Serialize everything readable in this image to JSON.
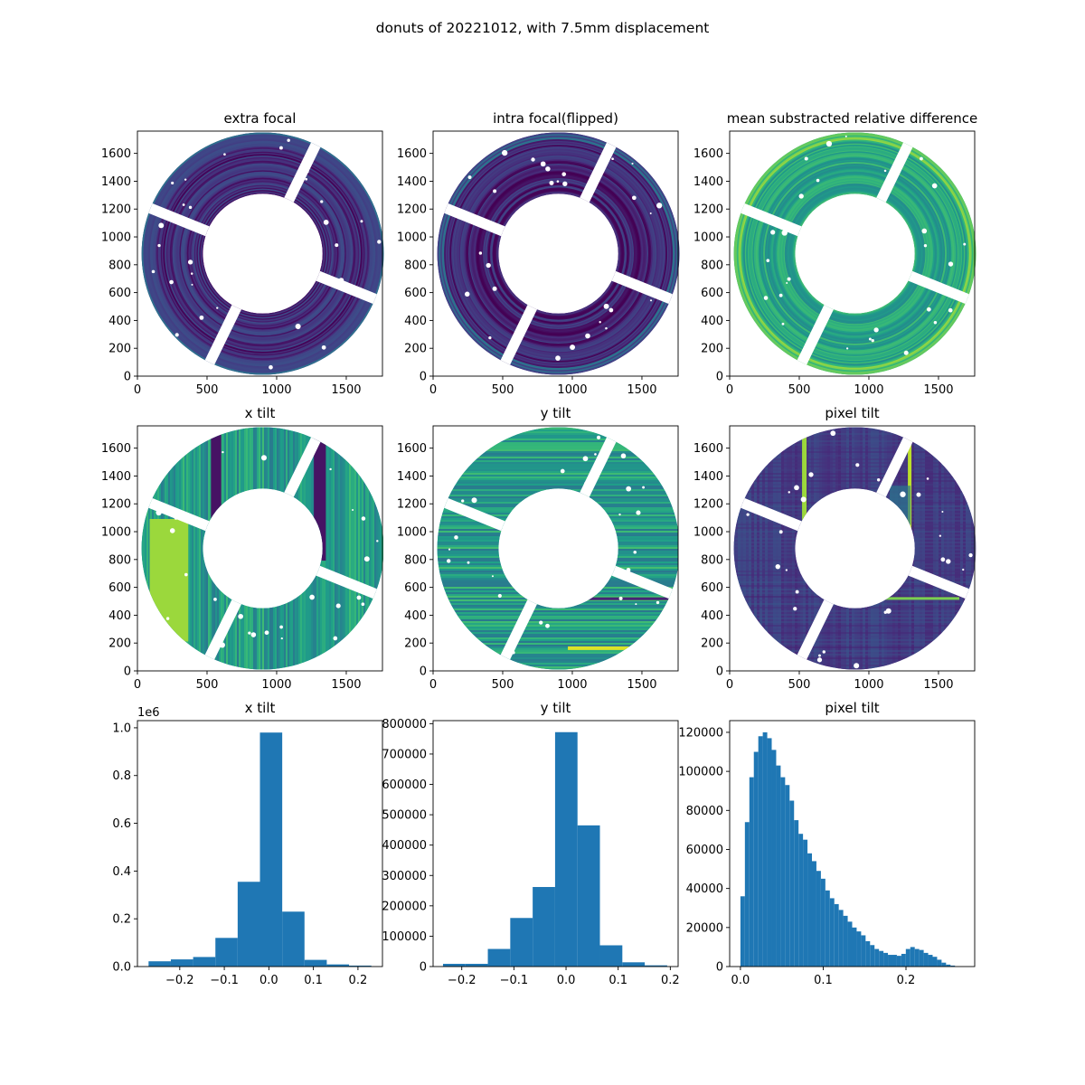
{
  "figure": {
    "suptitle": "donuts of 20221012, with 7.5mm displacement"
  },
  "chart_data": [
    {
      "type": "heatmap",
      "title": "extra focal",
      "image": "donut",
      "xlim": [
        0,
        1760
      ],
      "ylim": [
        0,
        1760
      ],
      "xticks": [
        "0",
        "500",
        "1000",
        "1500"
      ],
      "yticks": [
        "0",
        "200",
        "400",
        "600",
        "800",
        "1000",
        "1200",
        "1400",
        "1600"
      ],
      "colormap": "viridis",
      "mean_level": 0.12,
      "pattern": "rings"
    },
    {
      "type": "heatmap",
      "title": "intra focal(flipped)",
      "image": "donut",
      "xlim": [
        0,
        1760
      ],
      "ylim": [
        0,
        1760
      ],
      "xticks": [
        "0",
        "500",
        "1000",
        "1500"
      ],
      "yticks": [
        "0",
        "200",
        "400",
        "600",
        "800",
        "1000",
        "1200",
        "1400",
        "1600"
      ],
      "colormap": "viridis",
      "mean_level": 0.1,
      "pattern": "rings"
    },
    {
      "type": "heatmap",
      "title": "mean substracted relative difference",
      "image": "donut",
      "xlim": [
        0,
        1760
      ],
      "ylim": [
        0,
        1760
      ],
      "xticks": [
        "0",
        "500",
        "1000",
        "1500"
      ],
      "yticks": [
        "0",
        "200",
        "400",
        "600",
        "800",
        "1000",
        "1200",
        "1400",
        "1600"
      ],
      "colormap": "viridis",
      "mean_level": 0.58,
      "pattern": "rings"
    },
    {
      "type": "heatmap",
      "title": "x tilt",
      "image": "donut",
      "xlim": [
        0,
        1760
      ],
      "ylim": [
        0,
        1760
      ],
      "xticks": [
        "0",
        "500",
        "1000",
        "1500"
      ],
      "yticks": [
        "0",
        "200",
        "400",
        "600",
        "800",
        "1000",
        "1200",
        "1400",
        "1600"
      ],
      "colormap": "viridis",
      "mean_level": 0.55,
      "pattern": "vertical"
    },
    {
      "type": "heatmap",
      "title": "y tilt",
      "image": "donut",
      "xlim": [
        0,
        1760
      ],
      "ylim": [
        0,
        1760
      ],
      "xticks": [
        "0",
        "500",
        "1000",
        "1500"
      ],
      "yticks": [
        "0",
        "200",
        "400",
        "600",
        "800",
        "1000",
        "1200",
        "1400",
        "1600"
      ],
      "colormap": "viridis",
      "mean_level": 0.55,
      "pattern": "horizontal"
    },
    {
      "type": "heatmap",
      "title": "pixel tilt",
      "image": "donut",
      "xlim": [
        0,
        1760
      ],
      "ylim": [
        0,
        1760
      ],
      "xticks": [
        "0",
        "500",
        "1000",
        "1500"
      ],
      "yticks": [
        "0",
        "200",
        "400",
        "600",
        "800",
        "1000",
        "1200",
        "1400",
        "1600"
      ],
      "colormap": "viridis",
      "mean_level": 0.18,
      "pattern": "grid"
    },
    {
      "type": "bar",
      "title": "x tilt",
      "xlim": [
        -0.295,
        0.255
      ],
      "ylim": [
        0,
        1.03
      ],
      "xticks": [
        "−0.2",
        "−0.1",
        "0.0",
        "0.1",
        "0.2"
      ],
      "xtick_values": [
        -0.2,
        -0.1,
        0.0,
        0.1,
        0.2
      ],
      "yticks": [
        "0.0",
        "0.2",
        "0.4",
        "0.6",
        "0.8",
        "1.0"
      ],
      "ytick_values": [
        0,
        0.2,
        0.4,
        0.6,
        0.8,
        1.0
      ],
      "offset_label": "1e6",
      "bin_edges": [
        -0.27,
        -0.22,
        -0.17,
        -0.12,
        -0.07,
        -0.02,
        0.03,
        0.08,
        0.13,
        0.18,
        0.23
      ],
      "values": [
        0.022,
        0.03,
        0.04,
        0.12,
        0.355,
        0.98,
        0.23,
        0.028,
        0.009,
        0.004
      ],
      "color": "#1f77b4"
    },
    {
      "type": "bar",
      "title": "y tilt",
      "xlim": [
        -0.255,
        0.215
      ],
      "ylim": [
        0,
        810000
      ],
      "xticks": [
        "−0.2",
        "−0.1",
        "0.0",
        "0.1",
        "0.2"
      ],
      "xtick_values": [
        -0.2,
        -0.1,
        0.0,
        0.1,
        0.2
      ],
      "yticks": [
        "0",
        "100000",
        "200000",
        "300000",
        "400000",
        "500000",
        "600000",
        "700000",
        "800000"
      ],
      "ytick_values": [
        0,
        100000,
        200000,
        300000,
        400000,
        500000,
        600000,
        700000,
        800000
      ],
      "bin_edges": [
        -0.236,
        -0.193,
        -0.15,
        -0.107,
        -0.064,
        -0.021,
        0.022,
        0.065,
        0.108,
        0.151,
        0.194
      ],
      "values": [
        9000,
        9000,
        58000,
        160000,
        262000,
        772000,
        465000,
        70000,
        14000,
        4000
      ],
      "color": "#1f77b4"
    },
    {
      "type": "bar",
      "title": "pixel tilt",
      "xlim": [
        -0.013,
        0.283
      ],
      "ylim": [
        0,
        126000
      ],
      "xticks": [
        "0.0",
        "0.1",
        "0.2"
      ],
      "xtick_values": [
        0,
        0.1,
        0.2
      ],
      "yticks": [
        "0",
        "20000",
        "40000",
        "60000",
        "80000",
        "100000",
        "120000"
      ],
      "ytick_values": [
        0,
        20000,
        40000,
        60000,
        80000,
        100000,
        120000
      ],
      "bin_edges_start": 0.0,
      "bin_width": 0.0054,
      "values": [
        36000,
        74000,
        97000,
        110000,
        118000,
        120000,
        117000,
        111000,
        103000,
        97000,
        93000,
        85000,
        75000,
        68000,
        65000,
        58000,
        54000,
        49000,
        45000,
        39000,
        35000,
        32000,
        29000,
        26000,
        23000,
        20000,
        18000,
        16000,
        13000,
        11000,
        9000,
        8000,
        7000,
        6000,
        6000,
        5500,
        6500,
        9000,
        10000,
        9000,
        8500,
        7000,
        6000,
        5000,
        3500,
        2000,
        1000,
        500
      ],
      "color": "#1f77b4"
    }
  ]
}
